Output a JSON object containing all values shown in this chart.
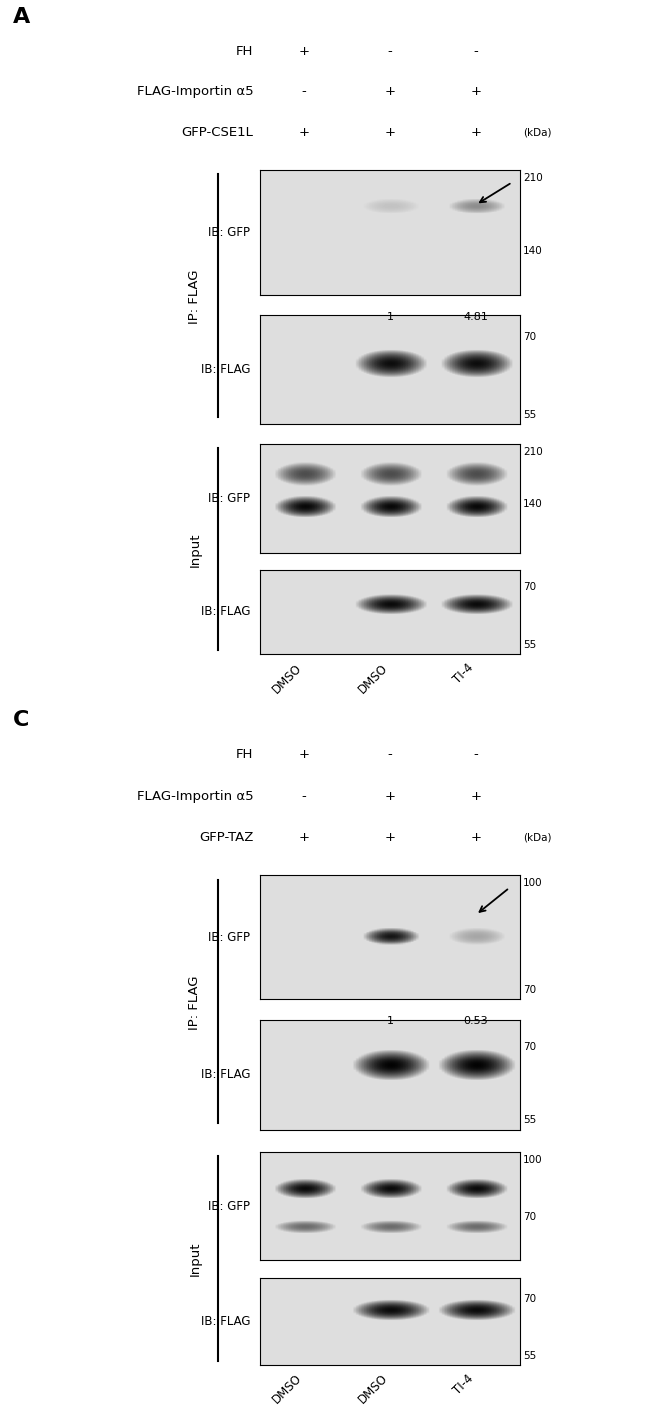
{
  "fig_width": 6.5,
  "fig_height": 14.12,
  "bg_color": "#ffffff",
  "panel_A": {
    "label": "A",
    "row1_label": "FH",
    "row2_label": "FLAG-Importin α5",
    "row3_label": "GFP-CSE1L",
    "conditions_row1": [
      "+",
      "-",
      "-"
    ],
    "conditions_row2": [
      "-",
      "+",
      "+"
    ],
    "conditions_row3": [
      "+",
      "+",
      "+"
    ],
    "kdal_label": "(kDa)",
    "ip_flag_label": "IP: FLAG",
    "input_label": "Input",
    "blot1_label": "IB: GFP",
    "blot2_label": "IB: FLAG",
    "blot3_label": "IB: GFP",
    "blot4_label": "IB: FLAG",
    "markers_blot1": [
      "210",
      "140"
    ],
    "markers_blot2": [
      "70",
      "55"
    ],
    "markers_blot3": [
      "210",
      "140"
    ],
    "markers_blot4": [
      "70",
      "55"
    ],
    "quant_values": [
      "1",
      "4.81"
    ],
    "x_labels": [
      "DMSO",
      "DMSO",
      "TI-4"
    ]
  },
  "panel_C": {
    "label": "C",
    "row1_label": "FH",
    "row2_label": "FLAG-Importin α5",
    "row3_label": "GFP-TAZ",
    "conditions_row1": [
      "+",
      "-",
      "-"
    ],
    "conditions_row2": [
      "-",
      "+",
      "+"
    ],
    "conditions_row3": [
      "+",
      "+",
      "+"
    ],
    "kdal_label": "(kDa)",
    "ip_flag_label": "IP: FLAG",
    "input_label": "Input",
    "blot1_label": "IB: GFP",
    "blot2_label": "IB: FLAG",
    "blot3_label": "IB: GFP",
    "blot4_label": "IB: FLAG",
    "markers_blot1": [
      "100",
      "70"
    ],
    "markers_blot2": [
      "70",
      "55"
    ],
    "markers_blot3": [
      "100",
      "70"
    ],
    "markers_blot4": [
      "70",
      "55"
    ],
    "quant_values": [
      "1",
      "0.53"
    ],
    "x_labels": [
      "DMSO",
      "DMSO",
      "TI-4"
    ]
  }
}
